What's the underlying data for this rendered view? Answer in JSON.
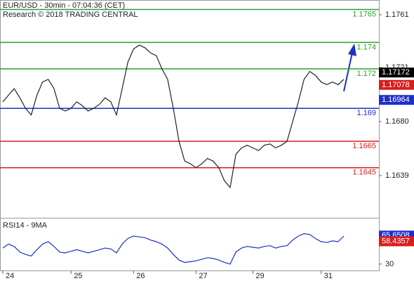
{
  "chart_data": [
    {
      "type": "line",
      "title": "EUR/USD - 30min - 07:04:36 (CET)",
      "subtitle": "Research © 2018 TRADING CENTRAL",
      "categories": [
        "24",
        null,
        null,
        null,
        null,
        null,
        null,
        null,
        null,
        null,
        null,
        null,
        "25",
        null,
        null,
        null,
        null,
        null,
        null,
        null,
        null,
        null,
        null,
        "26",
        null,
        null,
        null,
        null,
        null,
        null,
        null,
        null,
        null,
        null,
        "27",
        null,
        null,
        null,
        null,
        null,
        null,
        null,
        null,
        null,
        "29",
        null,
        null,
        null,
        null,
        null,
        null,
        null,
        null,
        null,
        null,
        null,
        "31",
        null,
        null,
        null,
        null
      ],
      "values": [
        1.1695,
        1.17,
        1.1705,
        1.1698,
        1.169,
        1.1685,
        1.17,
        1.171,
        1.1712,
        1.1705,
        1.169,
        1.1688,
        1.169,
        1.1695,
        1.1692,
        1.1688,
        1.169,
        1.1693,
        1.1698,
        1.1695,
        1.1685,
        1.1705,
        1.1725,
        1.1735,
        1.1738,
        1.1736,
        1.1732,
        1.173,
        1.172,
        1.1712,
        1.169,
        1.1665,
        1.165,
        1.1648,
        1.1645,
        1.1648,
        1.1652,
        1.165,
        1.1645,
        1.1635,
        1.163,
        1.1655,
        1.166,
        1.1662,
        1.166,
        1.1658,
        1.1662,
        1.1663,
        1.166,
        1.1662,
        1.1665,
        1.168,
        1.1695,
        1.1712,
        1.1718,
        1.1715,
        1.171,
        1.1708,
        1.171,
        1.1708,
        1.1712
      ],
      "color": "#222222",
      "levels": [
        {
          "value": 1.1765,
          "color": "#2e9e2e"
        },
        {
          "value": 1.174,
          "color": "#2e9e2e"
        },
        {
          "value": 1.172,
          "color": "#2e9e2e"
        },
        {
          "value": 1.169,
          "color": "#1f2fc8"
        },
        {
          "value": 1.1665,
          "color": "#d62020"
        },
        {
          "value": 1.1645,
          "color": "#d62020"
        }
      ],
      "price_tags": [
        {
          "value": 1.17172,
          "color": "#000000"
        },
        {
          "value": 1.17078,
          "color": "#d81e1e"
        },
        {
          "value": 1.16964,
          "color": "#1f2fc8"
        }
      ],
      "ylim": [
        1.1607,
        1.17722
      ],
      "yticks": [
        1.1761,
        1.1721,
        {
          "value": 1.168,
          "label": "1.1680"
        },
        1.1639
      ]
    },
    {
      "type": "line",
      "title": "RSI14 - 9MA",
      "values": [
        50,
        55,
        52,
        45,
        42,
        40,
        48,
        55,
        58,
        52,
        45,
        44,
        46,
        48,
        46,
        44,
        46,
        48,
        50,
        49,
        44,
        55,
        62,
        65,
        64,
        63,
        60,
        58,
        55,
        50,
        42,
        35,
        32,
        33,
        34,
        36,
        38,
        37,
        35,
        32,
        30,
        45,
        50,
        52,
        51,
        50,
        52,
        53,
        50,
        52,
        53,
        60,
        65,
        68,
        67,
        62,
        58,
        57,
        59,
        58,
        65
      ],
      "color": "#1f2fc8",
      "value_tags": [
        {
          "value": 65.6508,
          "color": "#1f2fc8"
        },
        {
          "value": 58.4357,
          "color": "#d81e1e"
        }
      ],
      "ylim": [
        22,
        87
      ],
      "yticks": [
        30
      ]
    }
  ]
}
